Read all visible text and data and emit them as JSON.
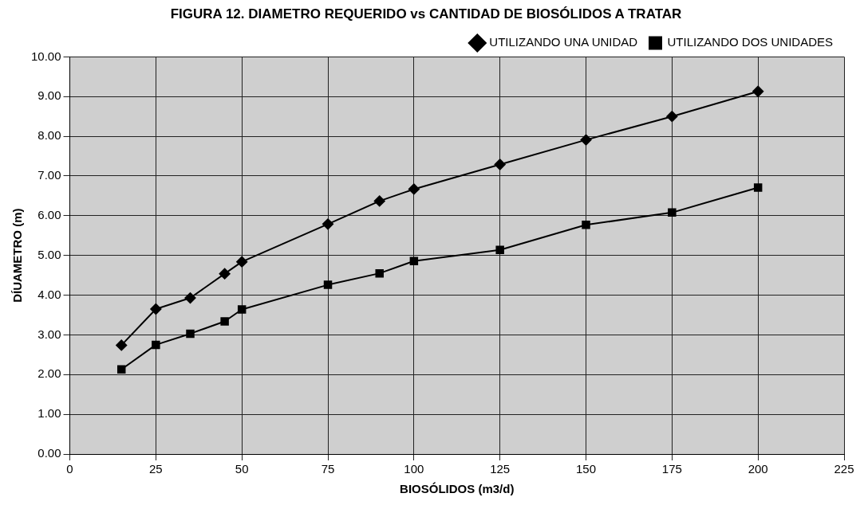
{
  "chart_data": {
    "type": "line",
    "title": "FIGURA 12. DIAMETRO REQUERIDO vs CANTIDAD DE BIOSÓLIDOS A TRATAR",
    "xlabel": "BIOSÓLIDOS (m3/d)",
    "ylabel": "DÍUAMETRO (m)",
    "x": [
      15,
      25,
      35,
      45,
      50,
      75,
      90,
      100,
      125,
      150,
      175,
      200
    ],
    "series": [
      {
        "name": "UTILIZANDO UNA UNIDAD",
        "color": "#000000",
        "marker": "diamond",
        "values": [
          2.74,
          3.65,
          3.93,
          4.54,
          4.84,
          5.79,
          6.37,
          6.67,
          7.29,
          7.91,
          8.5,
          9.13
        ]
      },
      {
        "name": "UTILIZANDO DOS UNIDADES",
        "color": "#000000",
        "marker": "square",
        "values": [
          2.13,
          2.75,
          3.03,
          3.34,
          3.64,
          4.26,
          4.55,
          4.86,
          5.14,
          5.77,
          6.08,
          6.71
        ]
      }
    ],
    "xlim": [
      0,
      225
    ],
    "xticks": [
      0,
      25,
      50,
      75,
      100,
      125,
      150,
      175,
      200,
      225
    ],
    "ylim": [
      0,
      10
    ],
    "yticks": [
      {
        "value": 0,
        "label": "0.00"
      },
      {
        "value": 1,
        "label": "1.00"
      },
      {
        "value": 2,
        "label": "2.00"
      },
      {
        "value": 3,
        "label": "3.00"
      },
      {
        "value": 4,
        "label": "4.00"
      },
      {
        "value": 5,
        "label": "5.00"
      },
      {
        "value": 6,
        "label": "6.00"
      },
      {
        "value": 7,
        "label": "7.00"
      },
      {
        "value": 8,
        "label": "8.00"
      },
      {
        "value": 9,
        "label": "9.00"
      },
      {
        "value": 10,
        "label": "10.00"
      }
    ],
    "grid": true,
    "legend": "top right",
    "line_style": "solid"
  }
}
